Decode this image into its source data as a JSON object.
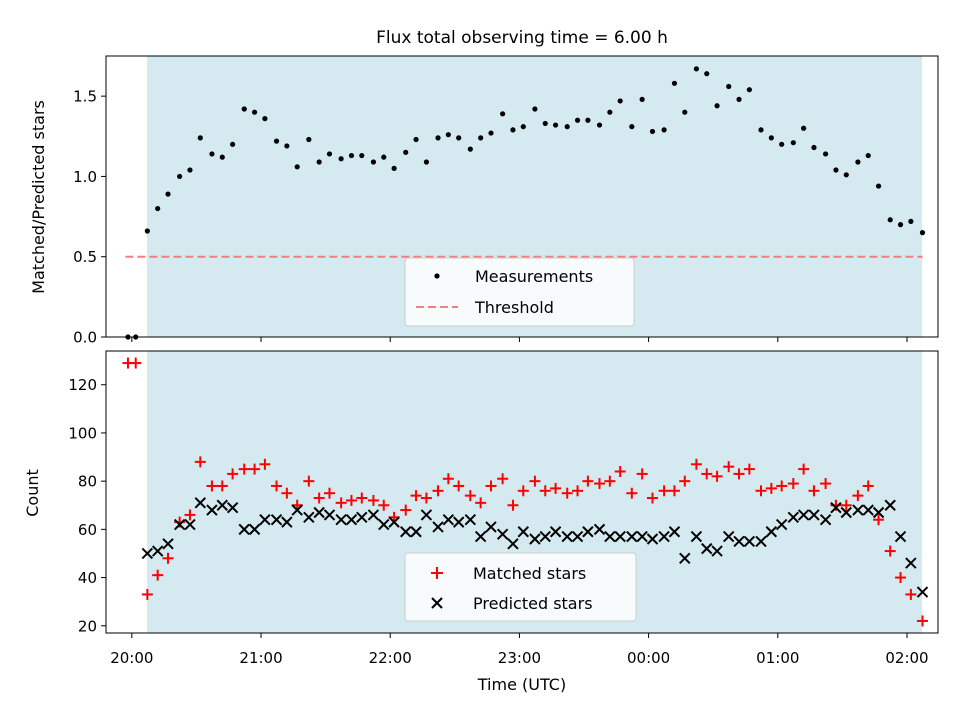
{
  "title": "Flux total observing time = 6.00 h",
  "colors": {
    "shade": "#d4eaf0",
    "threshold": "#f08080",
    "matched": "#ff0000",
    "predicted": "#000000",
    "measurement": "#000000"
  },
  "chart_data": [
    {
      "type": "scatter",
      "ylabel": "Matched/Predicted stars",
      "xlim": [
        -0.2,
        6.24
      ],
      "ylim": [
        0,
        1.75
      ],
      "yticks": [
        0.0,
        0.5,
        1.0,
        1.5
      ],
      "ytick_labels": [
        "0.0",
        "0.5",
        "1.0",
        "1.5"
      ],
      "shaded_span": [
        0.1167,
        6.1167
      ],
      "legend_position": "lower center",
      "threshold": {
        "name": "Threshold",
        "value": 0.5,
        "x_range": [
          -0.05,
          6.12
        ],
        "style": "dashed"
      },
      "series": [
        {
          "name": "Measurements",
          "marker": "dot",
          "x": [
            -0.03,
            0.03,
            0.12,
            0.2,
            0.28,
            0.37,
            0.45,
            0.53,
            0.62,
            0.7,
            0.78,
            0.87,
            0.95,
            1.03,
            1.12,
            1.2,
            1.28,
            1.37,
            1.45,
            1.53,
            1.62,
            1.7,
            1.78,
            1.87,
            1.95,
            2.03,
            2.12,
            2.2,
            2.28,
            2.37,
            2.45,
            2.53,
            2.62,
            2.7,
            2.78,
            2.87,
            2.95,
            3.03,
            3.12,
            3.2,
            3.28,
            3.37,
            3.45,
            3.53,
            3.62,
            3.7,
            3.78,
            3.87,
            3.95,
            4.03,
            4.12,
            4.2,
            4.28,
            4.37,
            4.45,
            4.53,
            4.62,
            4.7,
            4.78,
            4.87,
            4.95,
            5.03,
            5.12,
            5.2,
            5.28,
            5.37,
            5.45,
            5.53,
            5.62,
            5.7,
            5.78,
            5.87,
            5.95,
            6.03,
            6.12
          ],
          "y": [
            0,
            0,
            0.66,
            0.8,
            0.89,
            1.0,
            1.04,
            1.24,
            1.14,
            1.12,
            1.2,
            1.42,
            1.4,
            1.36,
            1.22,
            1.19,
            1.06,
            1.23,
            1.09,
            1.14,
            1.11,
            1.13,
            1.13,
            1.09,
            1.12,
            1.05,
            1.15,
            1.23,
            1.09,
            1.24,
            1.26,
            1.24,
            1.17,
            1.24,
            1.27,
            1.39,
            1.29,
            1.31,
            1.42,
            1.33,
            1.32,
            1.31,
            1.35,
            1.35,
            1.32,
            1.4,
            1.47,
            1.31,
            1.48,
            1.28,
            1.29,
            1.58,
            1.4,
            1.67,
            1.64,
            1.44,
            1.56,
            1.48,
            1.54,
            1.29,
            1.24,
            1.2,
            1.21,
            1.3,
            1.18,
            1.14,
            1.04,
            1.01,
            1.09,
            1.13,
            0.94,
            0.73,
            0.7,
            0.72,
            0.65
          ]
        }
      ]
    },
    {
      "type": "scatter",
      "xlabel": "Time (UTC)",
      "ylabel": "Count",
      "xlim": [
        -0.2,
        6.24
      ],
      "ylim": [
        17,
        134
      ],
      "yticks": [
        20,
        40,
        60,
        80,
        100,
        120
      ],
      "ytick_labels": [
        "20",
        "40",
        "60",
        "80",
        "100",
        "120"
      ],
      "xticks": [
        0,
        1,
        2,
        3,
        4,
        5,
        6
      ],
      "xtick_labels": [
        "20:00",
        "21:00",
        "22:00",
        "23:00",
        "00:00",
        "01:00",
        "02:00"
      ],
      "shaded_span": [
        0.1167,
        6.1167
      ],
      "legend_position": "lower center",
      "series": [
        {
          "name": "Matched stars",
          "marker": "plus",
          "x": [
            -0.03,
            0.03,
            0.12,
            0.2,
            0.28,
            0.37,
            0.45,
            0.53,
            0.62,
            0.7,
            0.78,
            0.87,
            0.95,
            1.03,
            1.12,
            1.2,
            1.28,
            1.37,
            1.45,
            1.53,
            1.62,
            1.7,
            1.78,
            1.87,
            1.95,
            2.03,
            2.12,
            2.2,
            2.28,
            2.37,
            2.45,
            2.53,
            2.62,
            2.7,
            2.78,
            2.87,
            2.95,
            3.03,
            3.12,
            3.2,
            3.28,
            3.37,
            3.45,
            3.53,
            3.62,
            3.7,
            3.78,
            3.87,
            3.95,
            4.03,
            4.12,
            4.2,
            4.28,
            4.37,
            4.45,
            4.53,
            4.62,
            4.7,
            4.78,
            4.87,
            4.95,
            5.03,
            5.12,
            5.2,
            5.28,
            5.37,
            5.45,
            5.53,
            5.62,
            5.7,
            5.78,
            5.87,
            5.95,
            6.03,
            6.12
          ],
          "y": [
            129,
            129,
            33,
            41,
            48,
            63,
            66,
            88,
            78,
            78,
            83,
            85,
            85,
            87,
            78,
            75,
            70,
            80,
            73,
            75,
            71,
            72,
            73,
            72,
            70,
            65,
            68,
            74,
            73,
            76,
            81,
            78,
            74,
            71,
            78,
            81,
            70,
            76,
            80,
            76,
            77,
            75,
            76,
            80,
            79,
            80,
            84,
            75,
            83,
            73,
            76,
            76,
            80,
            87,
            83,
            82,
            86,
            83,
            85,
            76,
            77,
            78,
            79,
            85,
            76,
            79,
            70,
            70,
            74,
            78,
            64,
            51,
            40,
            33,
            22
          ]
        },
        {
          "name": "Predicted stars",
          "marker": "x",
          "x": [
            0.12,
            0.2,
            0.28,
            0.37,
            0.45,
            0.53,
            0.62,
            0.7,
            0.78,
            0.87,
            0.95,
            1.03,
            1.12,
            1.2,
            1.28,
            1.37,
            1.45,
            1.53,
            1.62,
            1.7,
            1.78,
            1.87,
            1.95,
            2.03,
            2.12,
            2.2,
            2.28,
            2.37,
            2.45,
            2.53,
            2.62,
            2.7,
            2.78,
            2.87,
            2.95,
            3.03,
            3.12,
            3.2,
            3.28,
            3.37,
            3.45,
            3.53,
            3.62,
            3.7,
            3.78,
            3.87,
            3.95,
            4.03,
            4.12,
            4.2,
            4.28,
            4.37,
            4.45,
            4.53,
            4.62,
            4.7,
            4.78,
            4.87,
            4.95,
            5.03,
            5.12,
            5.2,
            5.28,
            5.37,
            5.45,
            5.53,
            5.62,
            5.7,
            5.78,
            5.87,
            5.95,
            6.03,
            6.12
          ],
          "y": [
            50,
            51,
            54,
            62,
            62,
            71,
            68,
            70,
            69,
            60,
            60,
            64,
            64,
            63,
            68,
            65,
            67,
            66,
            64,
            64,
            65,
            66,
            62,
            63,
            59,
            59,
            66,
            61,
            64,
            63,
            64,
            57,
            61,
            58,
            54,
            59,
            56,
            57,
            59,
            57,
            57,
            59,
            60,
            57,
            57,
            57,
            57,
            56,
            57,
            59,
            48,
            57,
            52,
            51,
            57,
            55,
            55,
            55,
            59,
            62,
            65,
            66,
            66,
            64,
            69,
            67,
            68,
            68,
            67,
            70,
            57,
            46,
            34
          ]
        }
      ]
    }
  ]
}
